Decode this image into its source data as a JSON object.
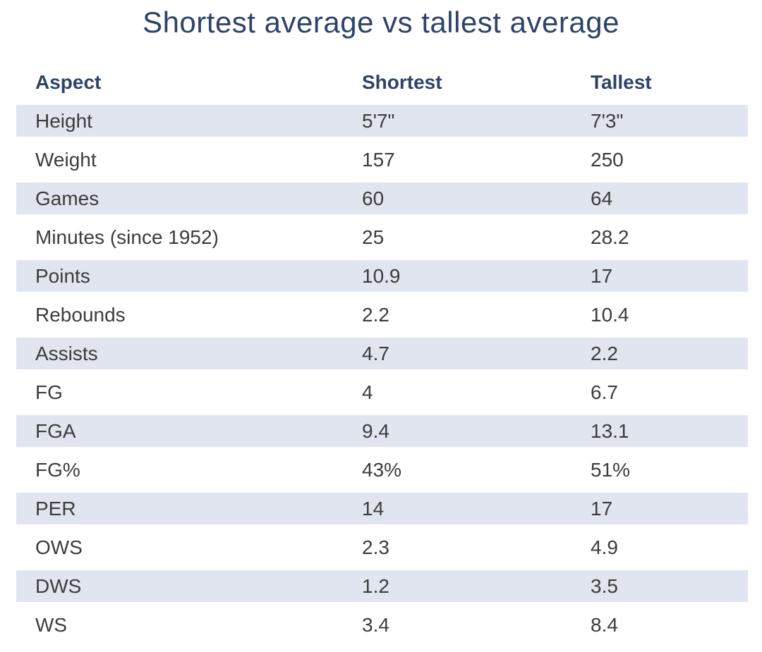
{
  "title": "Shortest average vs tallest average",
  "colors": {
    "title_text": "#2e4368",
    "header_text": "#2e4368",
    "body_text": "#3c3c3c",
    "row_stripe": "#e1e5f0",
    "background": "#ffffff"
  },
  "chart_data": {
    "type": "table",
    "title": "Shortest average vs tallest average",
    "columns": [
      "Aspect",
      "Shortest",
      "Tallest"
    ],
    "rows": [
      [
        "Height",
        "5'7\"",
        "7'3\""
      ],
      [
        "Weight",
        "157",
        "250"
      ],
      [
        "Games",
        "60",
        "64"
      ],
      [
        "Minutes (since 1952)",
        "25",
        "28.2"
      ],
      [
        "Points",
        "10.9",
        "17"
      ],
      [
        "Rebounds",
        "2.2",
        "10.4"
      ],
      [
        "Assists",
        "4.7",
        "2.2"
      ],
      [
        "FG",
        "4",
        "6.7"
      ],
      [
        "FGA",
        "9.4",
        "13.1"
      ],
      [
        "FG%",
        "43%",
        "51%"
      ],
      [
        "PER",
        "14",
        "17"
      ],
      [
        "OWS",
        "2.3",
        "4.9"
      ],
      [
        "DWS",
        "1.2",
        "3.5"
      ],
      [
        "WS",
        "3.4",
        "8.4"
      ]
    ],
    "layout": {
      "striped_rows": "odd",
      "column_alignment": [
        "left",
        "left",
        "left"
      ],
      "grid": false,
      "legend": "none"
    }
  }
}
